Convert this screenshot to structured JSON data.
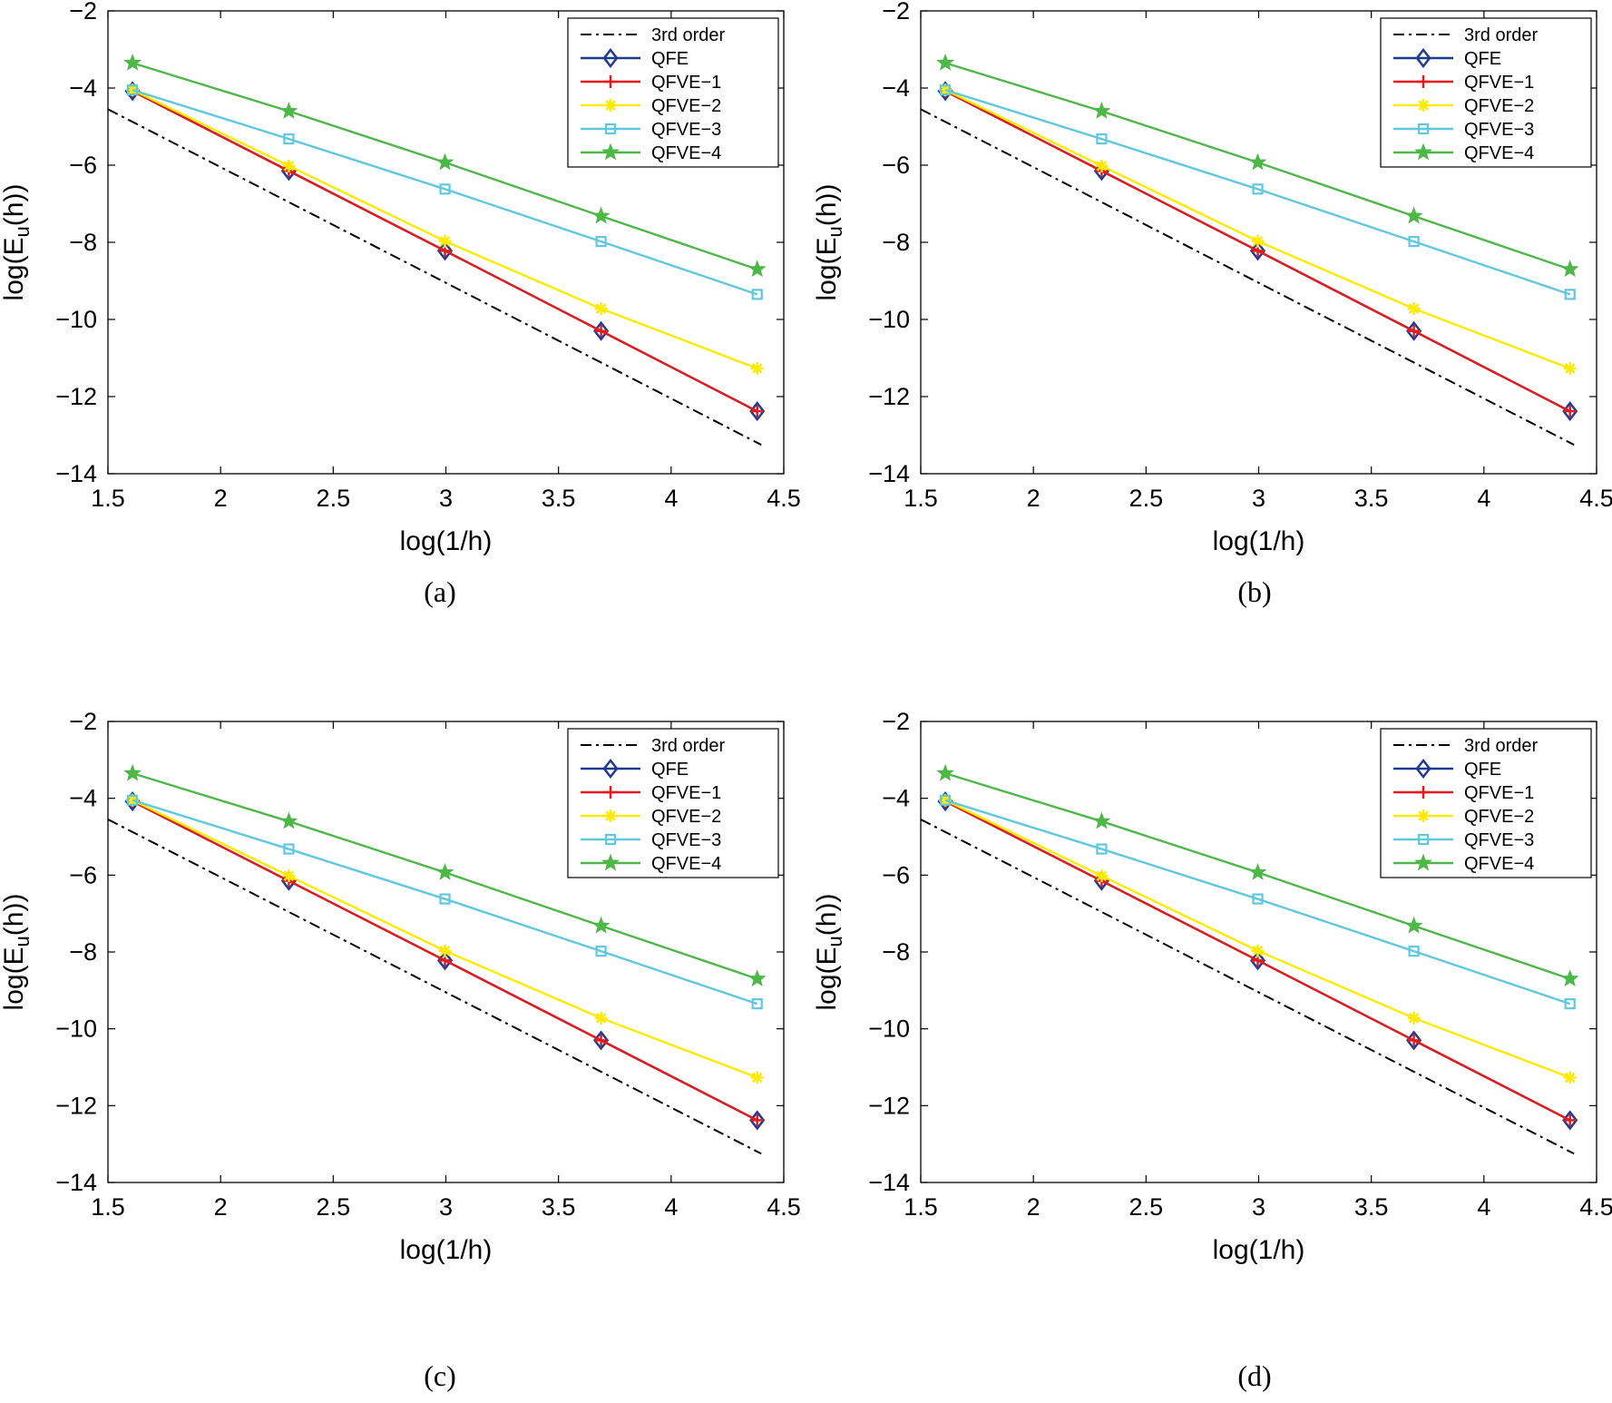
{
  "figure": {
    "panel_count": 4
  },
  "chart_data": [
    {
      "type": "line",
      "caption": "(a)",
      "xlabel": "log(1/h)",
      "ylabel": {
        "prefix": "log(E",
        "subscript": "u",
        "suffix": "(h))"
      },
      "xlim": [
        1.5,
        4.5
      ],
      "ylim": [
        -14,
        -2
      ],
      "xticks": [
        "1.5",
        "2",
        "2.5",
        "3",
        "3.5",
        "4",
        "4.5"
      ],
      "yticks": [
        "−2",
        "−4",
        "−6",
        "−8",
        "−10",
        "−12",
        "−14"
      ],
      "grid": false,
      "legend_position": "top-right",
      "x": [
        1.609,
        2.303,
        2.996,
        3.689,
        4.382
      ],
      "series": [
        {
          "name": "3rd order",
          "color": "#000000",
          "style": "dashdot",
          "marker": "none",
          "x": [
            1.5,
            4.4
          ],
          "values": [
            -4.55,
            -13.25
          ]
        },
        {
          "name": "QFE",
          "color": "#1f3a93",
          "style": "solid",
          "marker": "diamond",
          "values": [
            -4.08,
            -6.15,
            -8.22,
            -10.3,
            -12.38
          ]
        },
        {
          "name": "QFVE−1",
          "color": "#e41a1c",
          "style": "solid",
          "marker": "plus",
          "values": [
            -4.08,
            -6.15,
            -8.22,
            -10.3,
            -12.38
          ]
        },
        {
          "name": "QFVE−2",
          "color": "#ffea00",
          "style": "solid",
          "marker": "asterisk",
          "values": [
            -4.05,
            -6.02,
            -7.97,
            -9.72,
            -11.27
          ]
        },
        {
          "name": "QFVE−3",
          "color": "#5fc8df",
          "style": "solid",
          "marker": "square",
          "values": [
            -4.05,
            -5.32,
            -6.62,
            -7.98,
            -9.35
          ]
        },
        {
          "name": "QFVE−4",
          "color": "#4db848",
          "style": "solid",
          "marker": "star",
          "values": [
            -3.35,
            -4.6,
            -5.93,
            -7.32,
            -8.7
          ]
        }
      ]
    },
    {
      "type": "line",
      "caption": "(b)",
      "xlabel": "log(1/h)",
      "ylabel": {
        "prefix": "log(E",
        "subscript": "u",
        "suffix": "(h))"
      },
      "xlim": [
        1.5,
        4.5
      ],
      "ylim": [
        -14,
        -2
      ],
      "xticks": [
        "1.5",
        "2",
        "2.5",
        "3",
        "3.5",
        "4",
        "4.5"
      ],
      "yticks": [
        "−2",
        "−4",
        "−6",
        "−8",
        "−10",
        "−12",
        "−14"
      ],
      "grid": false,
      "legend_position": "top-right",
      "x": [
        1.609,
        2.303,
        2.996,
        3.689,
        4.382
      ],
      "series": [
        {
          "name": "3rd order",
          "color": "#000000",
          "style": "dashdot",
          "marker": "none",
          "x": [
            1.5,
            4.4
          ],
          "values": [
            -4.55,
            -13.25
          ]
        },
        {
          "name": "QFE",
          "color": "#1f3a93",
          "style": "solid",
          "marker": "diamond",
          "values": [
            -4.08,
            -6.15,
            -8.22,
            -10.3,
            -12.38
          ]
        },
        {
          "name": "QFVE−1",
          "color": "#e41a1c",
          "style": "solid",
          "marker": "plus",
          "values": [
            -4.08,
            -6.15,
            -8.22,
            -10.3,
            -12.38
          ]
        },
        {
          "name": "QFVE−2",
          "color": "#ffea00",
          "style": "solid",
          "marker": "asterisk",
          "values": [
            -4.05,
            -6.02,
            -7.97,
            -9.72,
            -11.27
          ]
        },
        {
          "name": "QFVE−3",
          "color": "#5fc8df",
          "style": "solid",
          "marker": "square",
          "values": [
            -4.05,
            -5.32,
            -6.62,
            -7.98,
            -9.35
          ]
        },
        {
          "name": "QFVE−4",
          "color": "#4db848",
          "style": "solid",
          "marker": "star",
          "values": [
            -3.35,
            -4.6,
            -5.93,
            -7.32,
            -8.7
          ]
        }
      ]
    },
    {
      "type": "line",
      "caption": "(c)",
      "xlabel": "log(1/h)",
      "ylabel": {
        "prefix": "log(E",
        "subscript": "u",
        "suffix": "(h))"
      },
      "xlim": [
        1.5,
        4.5
      ],
      "ylim": [
        -14,
        -2
      ],
      "xticks": [
        "1.5",
        "2",
        "2.5",
        "3",
        "3.5",
        "4",
        "4.5"
      ],
      "yticks": [
        "−2",
        "−4",
        "−6",
        "−8",
        "−10",
        "−12",
        "−14"
      ],
      "grid": false,
      "legend_position": "top-right",
      "x": [
        1.609,
        2.303,
        2.996,
        3.689,
        4.382
      ],
      "series": [
        {
          "name": "3rd order",
          "color": "#000000",
          "style": "dashdot",
          "marker": "none",
          "x": [
            1.5,
            4.4
          ],
          "values": [
            -4.55,
            -13.25
          ]
        },
        {
          "name": "QFE",
          "color": "#1f3a93",
          "style": "solid",
          "marker": "diamond",
          "values": [
            -4.08,
            -6.15,
            -8.22,
            -10.3,
            -12.38
          ]
        },
        {
          "name": "QFVE−1",
          "color": "#e41a1c",
          "style": "solid",
          "marker": "plus",
          "values": [
            -4.08,
            -6.15,
            -8.22,
            -10.3,
            -12.38
          ]
        },
        {
          "name": "QFVE−2",
          "color": "#ffea00",
          "style": "solid",
          "marker": "asterisk",
          "values": [
            -4.05,
            -6.02,
            -7.97,
            -9.72,
            -11.27
          ]
        },
        {
          "name": "QFVE−3",
          "color": "#5fc8df",
          "style": "solid",
          "marker": "square",
          "values": [
            -4.05,
            -5.32,
            -6.62,
            -7.98,
            -9.35
          ]
        },
        {
          "name": "QFVE−4",
          "color": "#4db848",
          "style": "solid",
          "marker": "star",
          "values": [
            -3.35,
            -4.6,
            -5.93,
            -7.32,
            -8.7
          ]
        }
      ]
    },
    {
      "type": "line",
      "caption": "(d)",
      "xlabel": "log(1/h)",
      "ylabel": {
        "prefix": "log(E",
        "subscript": "u",
        "suffix": "(h))"
      },
      "xlim": [
        1.5,
        4.5
      ],
      "ylim": [
        -14,
        -2
      ],
      "xticks": [
        "1.5",
        "2",
        "2.5",
        "3",
        "3.5",
        "4",
        "4.5"
      ],
      "yticks": [
        "−2",
        "−4",
        "−6",
        "−8",
        "−10",
        "−12",
        "−14"
      ],
      "grid": false,
      "legend_position": "top-right",
      "x": [
        1.609,
        2.303,
        2.996,
        3.689,
        4.382
      ],
      "series": [
        {
          "name": "3rd order",
          "color": "#000000",
          "style": "dashdot",
          "marker": "none",
          "x": [
            1.5,
            4.4
          ],
          "values": [
            -4.55,
            -13.25
          ]
        },
        {
          "name": "QFE",
          "color": "#1f3a93",
          "style": "solid",
          "marker": "diamond",
          "values": [
            -4.08,
            -6.15,
            -8.22,
            -10.3,
            -12.38
          ]
        },
        {
          "name": "QFVE−1",
          "color": "#e41a1c",
          "style": "solid",
          "marker": "plus",
          "values": [
            -4.08,
            -6.15,
            -8.22,
            -10.3,
            -12.38
          ]
        },
        {
          "name": "QFVE−2",
          "color": "#ffea00",
          "style": "solid",
          "marker": "asterisk",
          "values": [
            -4.05,
            -6.02,
            -7.97,
            -9.72,
            -11.27
          ]
        },
        {
          "name": "QFVE−3",
          "color": "#5fc8df",
          "style": "solid",
          "marker": "square",
          "values": [
            -4.05,
            -5.32,
            -6.62,
            -7.98,
            -9.35
          ]
        },
        {
          "name": "QFVE−4",
          "color": "#4db848",
          "style": "solid",
          "marker": "star",
          "values": [
            -3.35,
            -4.6,
            -5.93,
            -7.32,
            -8.7
          ]
        }
      ]
    }
  ]
}
